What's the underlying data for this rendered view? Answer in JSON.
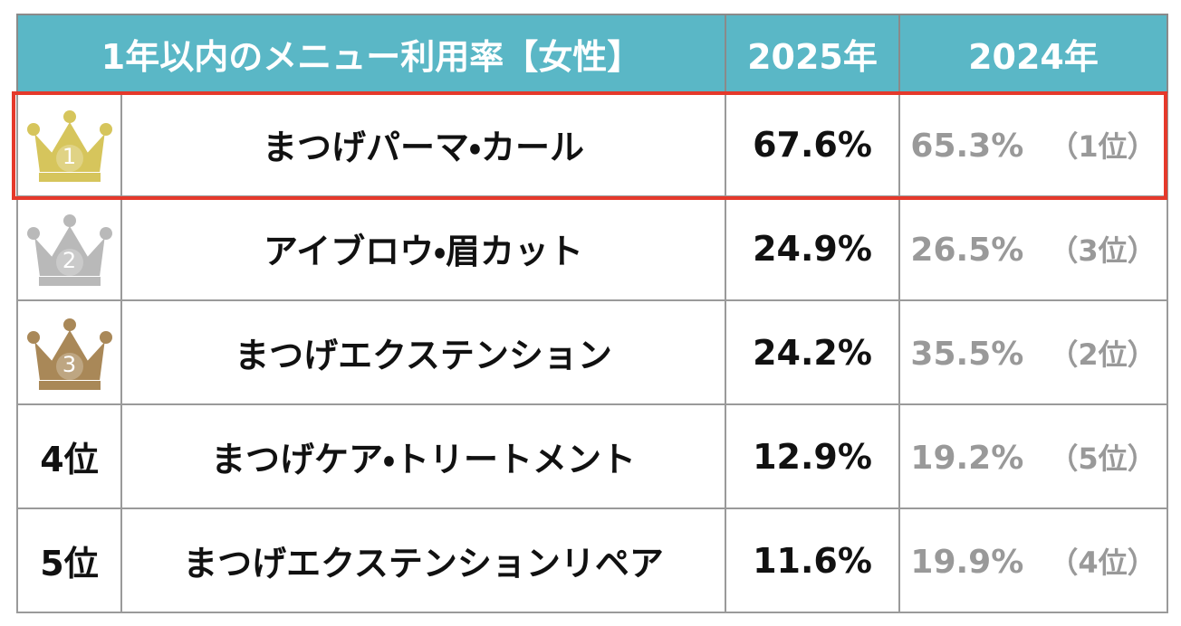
{
  "table": {
    "header": [
      "1年以内のメニュー利用率【女性】",
      "2025年",
      "2024年"
    ],
    "rows": [
      {
        "rank": "1",
        "menu": "まつげパーマ・カール",
        "y2025": "67.6%",
        "y2024": "65.3%",
        "rank2024": "（1位）"
      },
      {
        "rank": "2",
        "menu": "アイブロウ・眉カット",
        "y2025": "24.9%",
        "y2024": "26.5%",
        "rank2024": "（3位）"
      },
      {
        "rank": "3",
        "menu": "まつげエクステンション",
        "y2025": "24.2%",
        "y2024": "35.5%",
        "rank2024": "（2位）"
      },
      {
        "rank": "4位",
        "menu": "まつげケア・トリートメント",
        "y2025": "12.9%",
        "y2024": "19.2%",
        "rank2024": "（5位）"
      },
      {
        "rank": "5位",
        "menu": "まつげエクステンションリペア",
        "y2025": "11.6%",
        "y2024": "19.9%",
        "rank2024": "（4位）"
      }
    ]
  }
}
